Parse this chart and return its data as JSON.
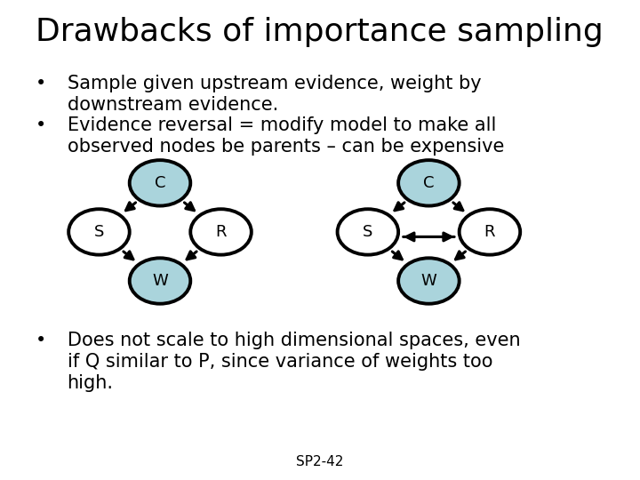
{
  "title": "Drawbacks of importance sampling",
  "bullet1": "Sample given upstream evidence, weight by\n    downstream evidence.",
  "bullet2": "Evidence reversal = modify model to make all\n    observed nodes be parents – can be expensive",
  "bullet3": "Does not scale to high dimensional spaces, even\n    if Q similar to P, since variance of weights too\n    high.",
  "footer": "SP2-42",
  "bg_color": "#ffffff",
  "node_fill_white": "#ffffff",
  "node_fill_blue": "#aad4dc",
  "node_outline": "#000000",
  "arrow_color": "#000000",
  "text_color": "#000000",
  "title_fontsize": 26,
  "body_fontsize": 15,
  "footer_fontsize": 11,
  "left_graph": {
    "nodes": {
      "C": [
        0.5,
        0.82,
        "blue"
      ],
      "S": [
        0.22,
        0.52,
        "white"
      ],
      "R": [
        0.78,
        0.52,
        "white"
      ],
      "W": [
        0.5,
        0.22,
        "blue"
      ]
    },
    "edges": [
      [
        "C",
        "S",
        false
      ],
      [
        "C",
        "R",
        false
      ],
      [
        "S",
        "W",
        false
      ],
      [
        "R",
        "W",
        false
      ]
    ]
  },
  "right_graph": {
    "nodes": {
      "C": [
        0.5,
        0.82,
        "blue"
      ],
      "S": [
        0.22,
        0.52,
        "white"
      ],
      "R": [
        0.78,
        0.52,
        "white"
      ],
      "W": [
        0.5,
        0.22,
        "blue"
      ]
    },
    "edges": [
      [
        "C",
        "S",
        false
      ],
      [
        "C",
        "R",
        false
      ],
      [
        "S",
        "W",
        false
      ],
      [
        "R",
        "W",
        false
      ],
      [
        "S",
        "R",
        true
      ],
      [
        "R",
        "S",
        true
      ]
    ]
  }
}
